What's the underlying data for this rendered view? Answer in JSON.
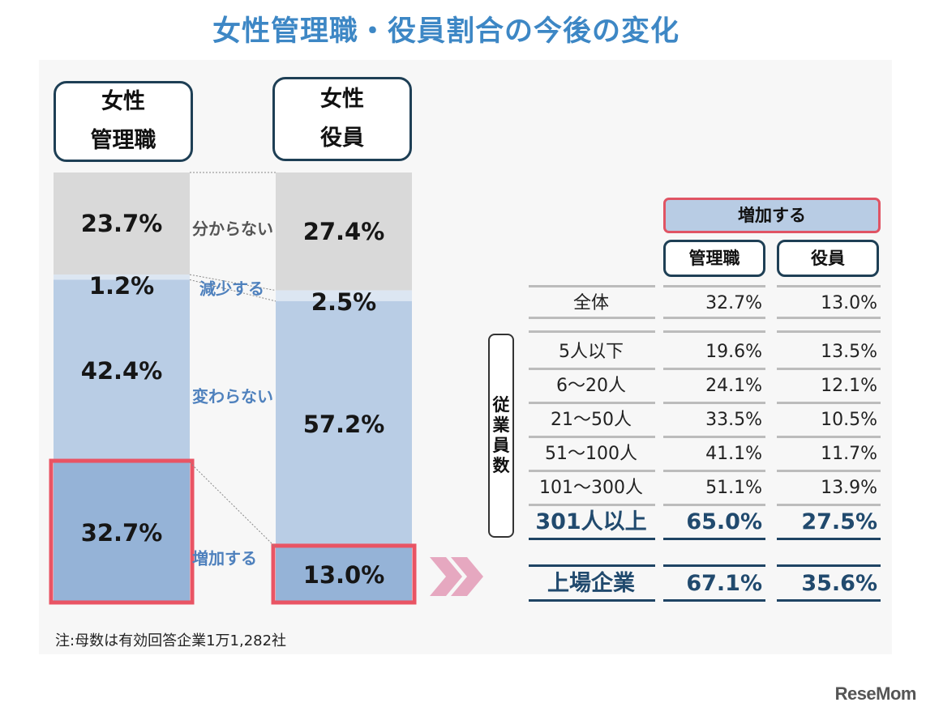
{
  "title": "女性管理職・役員割合の今後の変化",
  "headers": {
    "mgmt_line1": "女性",
    "mgmt_line2": "管理職",
    "exec_line1": "女性",
    "exec_line2": "役員"
  },
  "chart_data": {
    "type": "bar",
    "stacked": true,
    "categories": [
      "女性管理職",
      "女性役員"
    ],
    "series": [
      {
        "name": "分からない",
        "values": [
          23.7,
          27.4
        ],
        "color": "#d9d9d9",
        "label_color": "#555555"
      },
      {
        "name": "減少する",
        "values": [
          1.2,
          2.5
        ],
        "color": "#dce6f2",
        "label_color": "#4f81bd"
      },
      {
        "name": "変わらない",
        "values": [
          42.4,
          57.2
        ],
        "color": "#b9cde5",
        "label_color": "#4f81bd"
      },
      {
        "name": "増加する",
        "values": [
          32.7,
          13.0
        ],
        "color": "#95b3d7",
        "label_color": "#4f81bd"
      }
    ],
    "value_labels": {
      "分からない": [
        "23.7%",
        "27.4%"
      ],
      "減少する": [
        "1.2%",
        "2.5%"
      ],
      "変わらない": [
        "42.4%",
        "57.2%"
      ],
      "増加する": [
        "32.7%",
        "13.0%"
      ]
    },
    "highlight_series": "増加する",
    "highlight_color": "#e95464"
  },
  "table": {
    "group_header": "増加する",
    "col1": "管理職",
    "col2": "役員",
    "side_label": [
      "従",
      "業",
      "員",
      "数"
    ],
    "total": {
      "label": "全体",
      "mgmt": "32.7%",
      "exec": "13.0%"
    },
    "rows": [
      {
        "label": "5人以下",
        "mgmt": "19.6%",
        "exec": "13.5%"
      },
      {
        "label": "6～20人",
        "mgmt": "24.1%",
        "exec": "12.1%"
      },
      {
        "label": "21～50人",
        "mgmt": "33.5%",
        "exec": "10.5%"
      },
      {
        "label": "51～100人",
        "mgmt": "41.1%",
        "exec": "11.7%"
      },
      {
        "label": "101～300人",
        "mgmt": "51.1%",
        "exec": "13.9%"
      },
      {
        "label": "301人以上",
        "mgmt": "65.0%",
        "exec": "27.5%"
      }
    ],
    "listed": {
      "label": "上場企業",
      "mgmt": "67.1%",
      "exec": "35.6%"
    }
  },
  "note": "注:母数は有効回答企業1万1,282社",
  "logo": "ReseMom",
  "accent_colors": {
    "title": "#3d87c5",
    "table_bold": "#214a6e",
    "arrow": "#e6a8c0"
  }
}
